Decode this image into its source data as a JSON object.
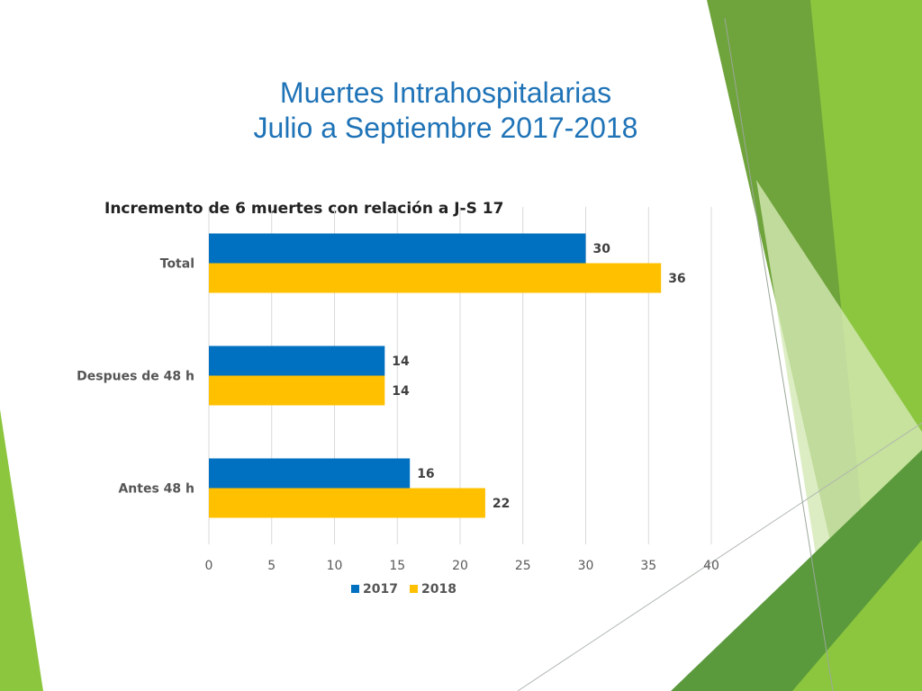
{
  "slide": {
    "title_line1": "Muertes Intrahospitalarias",
    "title_line2": "Julio a Septiembre 2017-2018"
  },
  "colors": {
    "series_2017": "#0070c0",
    "series_2018": "#ffc000",
    "title": "#1f73b7",
    "accent_green": "#7dba2f"
  },
  "chart_data": {
    "type": "bar",
    "orientation": "horizontal",
    "title": "Incremento de 6 muertes con relación a J-S 17",
    "categories": [
      "Total",
      "Despues de 48 h",
      "Antes 48 h"
    ],
    "series": [
      {
        "name": "2017",
        "values": [
          30,
          14,
          16
        ]
      },
      {
        "name": "2018",
        "values": [
          36,
          14,
          22
        ]
      }
    ],
    "xlim": [
      0,
      40
    ],
    "xticks": [
      0,
      5,
      10,
      15,
      20,
      25,
      30,
      35,
      40
    ],
    "grid": true,
    "data_labels": true,
    "legend": "bottom"
  }
}
